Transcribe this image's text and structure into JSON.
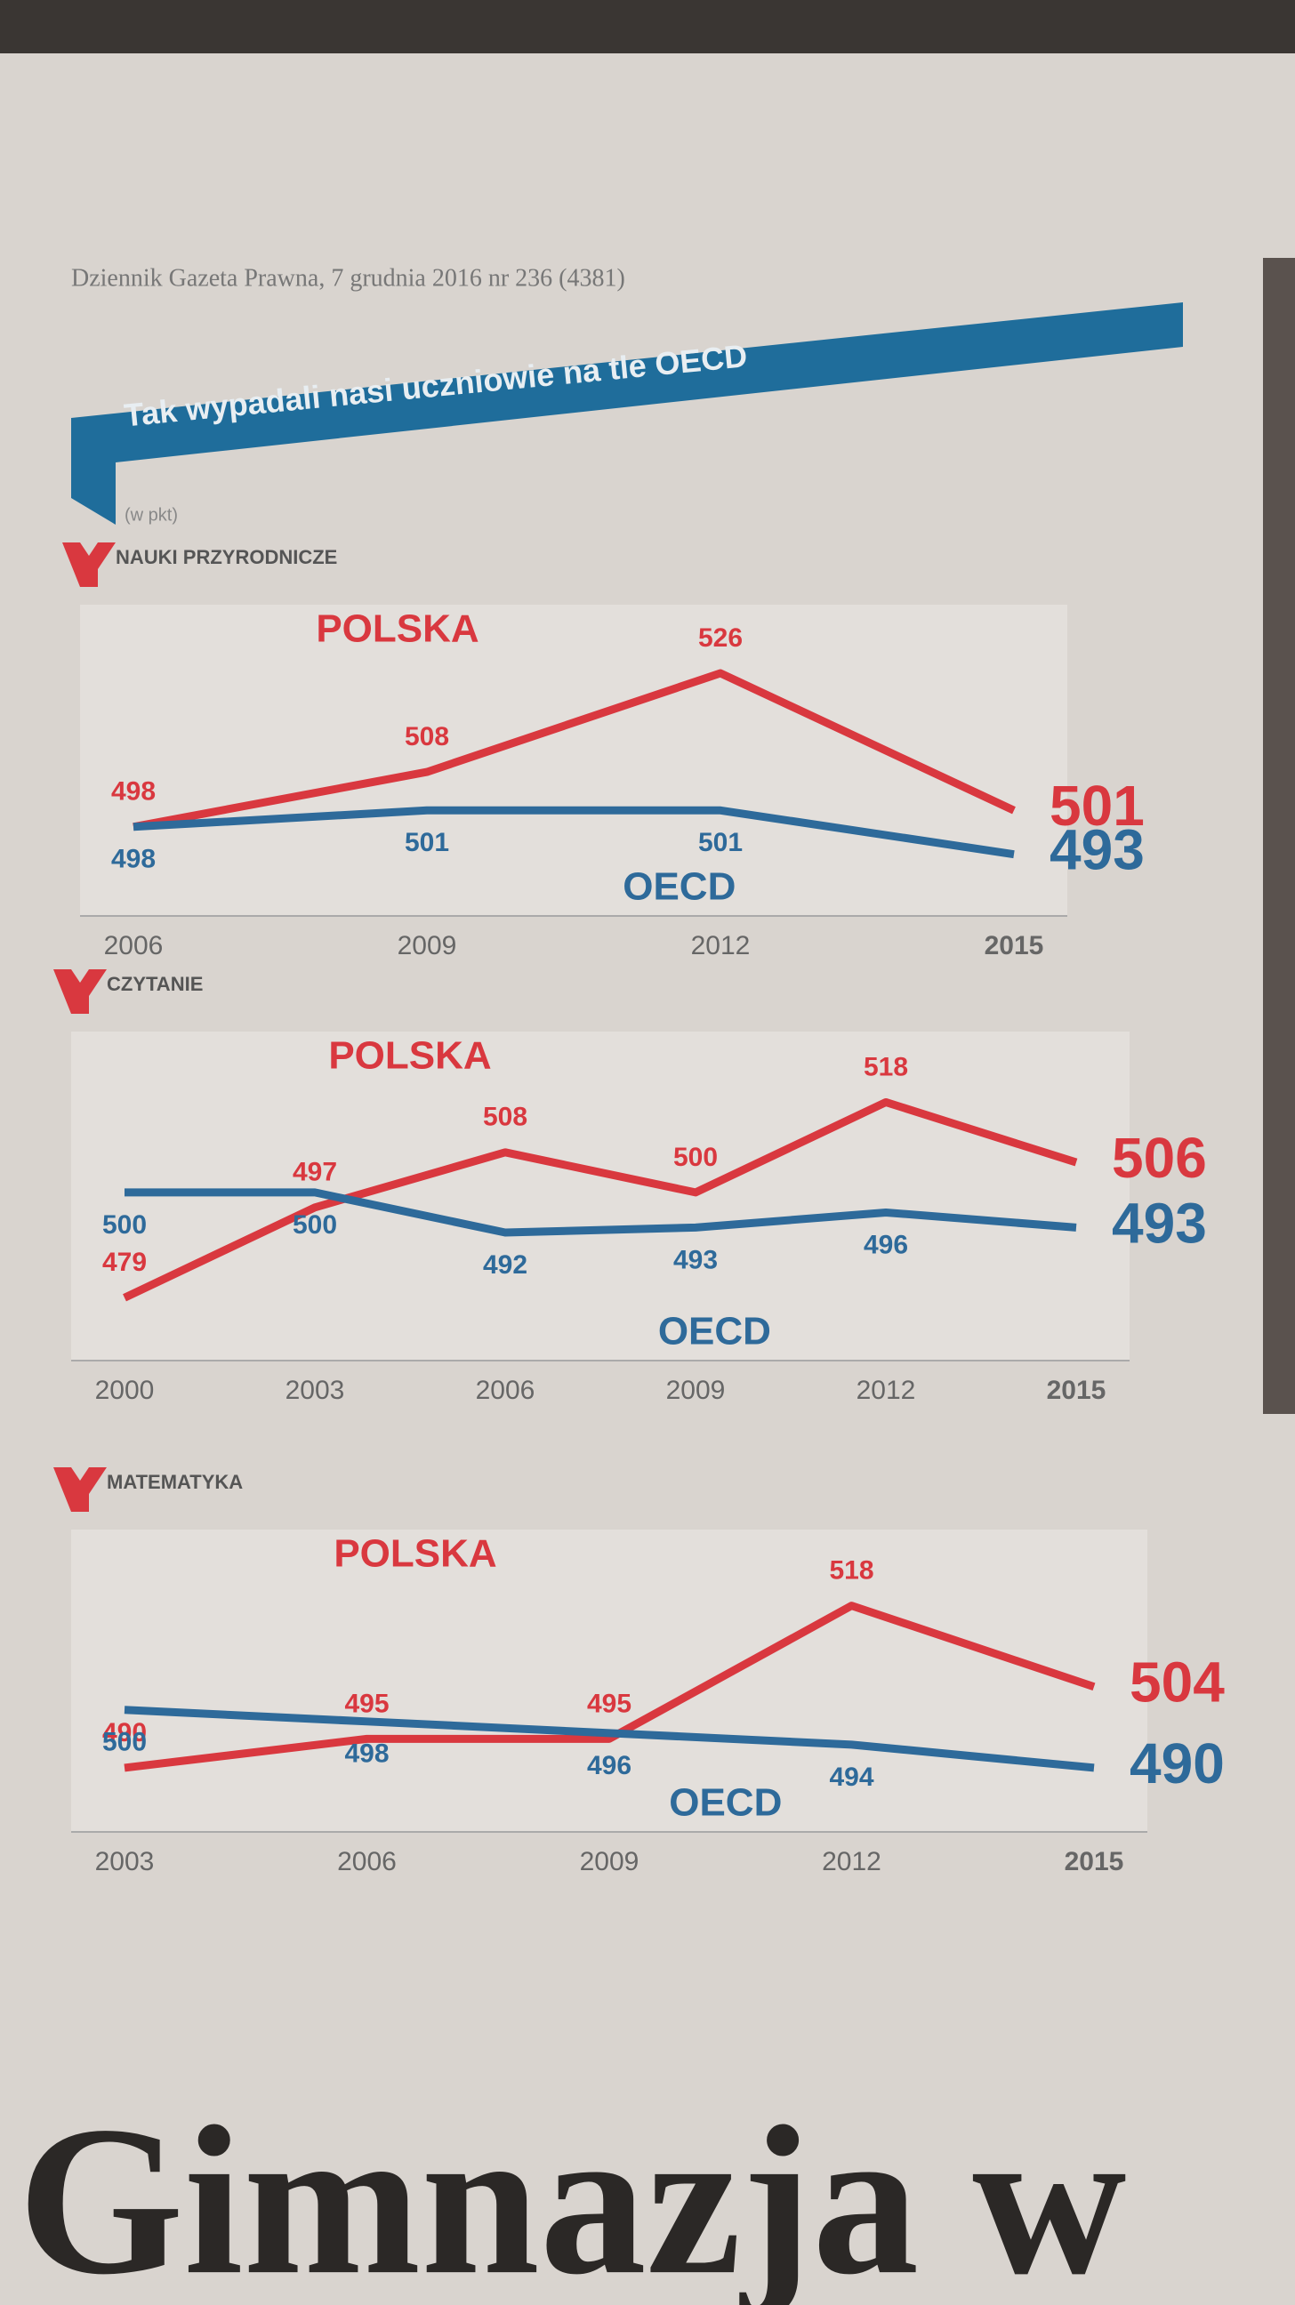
{
  "header": {
    "publication": "Dziennik Gazeta Prawna, 7 grudnia 2016 nr 236 (4381)",
    "title": "Tak wypadali nasi uczniowie na tle OECD",
    "unit": "(w pkt)"
  },
  "footer": {
    "headline": "Gimnazja w"
  },
  "chart_data": [
    {
      "type": "line",
      "title": "NAUKI PRZYRODNICZE",
      "categories": [
        "2006",
        "2009",
        "2012",
        "2015"
      ],
      "ylim": [
        485,
        532
      ],
      "series": [
        {
          "name": "POLSKA",
          "color": "#d9383f",
          "values": [
            498,
            508,
            526,
            501
          ]
        },
        {
          "name": "OECD",
          "color": "#2e6a9a",
          "values": [
            498,
            501,
            501,
            493
          ]
        }
      ]
    },
    {
      "type": "line",
      "title": "CZYTANIE",
      "categories": [
        "2000",
        "2003",
        "2006",
        "2009",
        "2012",
        "2015"
      ],
      "ylim": [
        470,
        525
      ],
      "series": [
        {
          "name": "POLSKA",
          "color": "#d9383f",
          "values": [
            479,
            497,
            508,
            500,
            518,
            506
          ]
        },
        {
          "name": "OECD",
          "color": "#2e6a9a",
          "values": [
            500,
            500,
            492,
            493,
            496,
            493
          ]
        }
      ]
    },
    {
      "type": "line",
      "title": "MATEMATYKA",
      "categories": [
        "2003",
        "2006",
        "2009",
        "2012",
        "2015"
      ],
      "ylim": [
        482,
        525
      ],
      "series": [
        {
          "name": "POLSKA",
          "color": "#d9383f",
          "values": [
            490,
            495,
            495,
            518,
            504
          ]
        },
        {
          "name": "OECD",
          "color": "#2e6a9a",
          "values": [
            500,
            498,
            496,
            494,
            490
          ]
        }
      ]
    }
  ]
}
